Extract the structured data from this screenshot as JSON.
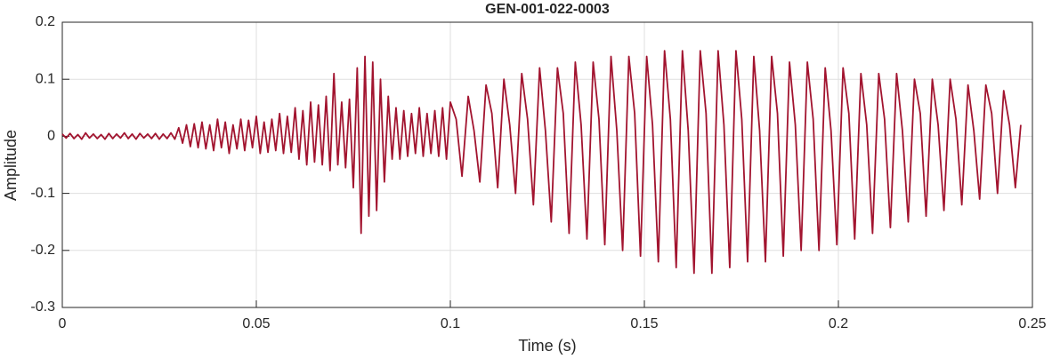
{
  "chart_data": {
    "type": "line",
    "title": "GEN-001-022-0003",
    "xlabel": "Time (s)",
    "ylabel": "Amplitude",
    "xlim": [
      0,
      0.25
    ],
    "xticks": [
      0,
      0.05,
      0.1,
      0.15,
      0.2,
      0.25
    ],
    "ylim": [
      -0.3,
      0.2
    ],
    "yticks": [
      -0.3,
      -0.2,
      -0.1,
      0,
      0.1,
      0.2
    ],
    "grid": true,
    "series": [
      {
        "color": "#a2142f",
        "x": [
          0,
          0.001,
          0.002,
          0.003,
          0.004,
          0.005,
          0.006,
          0.007,
          0.008,
          0.009,
          0.01,
          0.011,
          0.012,
          0.013,
          0.014,
          0.015,
          0.016,
          0.017,
          0.018,
          0.019,
          0.02,
          0.021,
          0.022,
          0.023,
          0.024,
          0.025,
          0.026,
          0.027,
          0.028,
          0.029,
          0.03,
          0.031,
          0.032,
          0.033,
          0.034,
          0.035,
          0.036,
          0.037,
          0.038,
          0.039,
          0.04,
          0.041,
          0.042,
          0.043,
          0.044,
          0.045,
          0.046,
          0.047,
          0.048,
          0.049,
          0.05,
          0.051,
          0.052,
          0.053,
          0.054,
          0.055,
          0.056,
          0.057,
          0.058,
          0.059,
          0.06,
          0.061,
          0.062,
          0.063,
          0.064,
          0.065,
          0.066,
          0.067,
          0.068,
          0.069,
          0.07,
          0.071,
          0.072,
          0.073,
          0.074,
          0.075,
          0.076,
          0.077,
          0.078,
          0.079,
          0.08,
          0.081,
          0.082,
          0.083,
          0.084,
          0.085,
          0.086,
          0.087,
          0.088,
          0.089,
          0.09,
          0.091,
          0.092,
          0.093,
          0.094,
          0.095,
          0.096,
          0.097,
          0.098,
          0.099,
          0.1,
          0.1015,
          0.103,
          0.1046,
          0.1061,
          0.1076,
          0.1092,
          0.1107,
          0.1122,
          0.1138,
          0.1153,
          0.1168,
          0.1184,
          0.1199,
          0.1214,
          0.123,
          0.1245,
          0.126,
          0.1276,
          0.1291,
          0.1306,
          0.1322,
          0.1337,
          0.1352,
          0.1368,
          0.1383,
          0.1398,
          0.1414,
          0.1429,
          0.1444,
          0.146,
          0.1475,
          0.149,
          0.1506,
          0.1521,
          0.1536,
          0.1552,
          0.1567,
          0.1582,
          0.1598,
          0.1613,
          0.1628,
          0.1644,
          0.1659,
          0.1674,
          0.169,
          0.1705,
          0.172,
          0.1736,
          0.1751,
          0.1766,
          0.1782,
          0.1797,
          0.1812,
          0.1828,
          0.1843,
          0.1858,
          0.1874,
          0.1889,
          0.1904,
          0.192,
          0.1935,
          0.195,
          0.1966,
          0.1981,
          0.1996,
          0.2012,
          0.2027,
          0.2042,
          0.2058,
          0.2073,
          0.2088,
          0.2104,
          0.2119,
          0.2134,
          0.215,
          0.2165,
          0.218,
          0.2196,
          0.2211,
          0.2226,
          0.2242,
          0.2257,
          0.2272,
          0.2288,
          0.2303,
          0.2318,
          0.2334,
          0.2349,
          0.2364,
          0.238,
          0.2395,
          0.241,
          0.2426,
          0.2441,
          0.2456,
          0.247
        ],
        "values": [
          0.004,
          -0.003,
          0.005,
          -0.004,
          0.003,
          -0.005,
          0.006,
          -0.003,
          0.004,
          -0.004,
          0.003,
          -0.005,
          0.005,
          -0.004,
          0.004,
          -0.003,
          0.006,
          -0.004,
          0.004,
          -0.005,
          0.005,
          -0.003,
          0.004,
          -0.004,
          0.005,
          -0.005,
          0.004,
          -0.004,
          0.006,
          -0.005,
          0.015,
          -0.012,
          0.02,
          -0.018,
          0.022,
          -0.02,
          0.025,
          -0.022,
          0.02,
          -0.025,
          0.03,
          -0.02,
          0.025,
          -0.03,
          0.02,
          -0.022,
          0.03,
          -0.025,
          0.028,
          -0.02,
          0.035,
          -0.03,
          0.025,
          -0.028,
          0.03,
          -0.025,
          0.04,
          -0.03,
          0.035,
          -0.028,
          0.05,
          -0.04,
          0.045,
          -0.05,
          0.06,
          -0.045,
          0.055,
          -0.05,
          0.07,
          -0.06,
          0.11,
          -0.05,
          0.06,
          -0.055,
          0.065,
          -0.09,
          0.12,
          -0.17,
          0.14,
          -0.14,
          0.13,
          -0.13,
          0.1,
          -0.08,
          0.07,
          -0.04,
          0.05,
          -0.04,
          0.045,
          -0.035,
          0.04,
          -0.03,
          0.05,
          -0.035,
          0.04,
          -0.03,
          0.045,
          -0.035,
          0.05,
          -0.04,
          0.06,
          0.03,
          -0.07,
          0.07,
          0.01,
          -0.08,
          0.09,
          0.04,
          -0.09,
          0.1,
          0.02,
          -0.1,
          0.11,
          0.03,
          -0.12,
          0.12,
          0.01,
          -0.15,
          0.12,
          0.04,
          -0.17,
          0.13,
          0.02,
          -0.18,
          0.13,
          0.03,
          -0.19,
          0.14,
          0.01,
          -0.2,
          0.14,
          0.04,
          -0.21,
          0.14,
          0.02,
          -0.22,
          0.15,
          0.03,
          -0.23,
          0.15,
          0.01,
          -0.24,
          0.15,
          0.04,
          -0.24,
          0.15,
          0.02,
          -0.23,
          0.15,
          0.03,
          -0.22,
          0.14,
          0.01,
          -0.22,
          0.14,
          0.04,
          -0.21,
          0.13,
          0.02,
          -0.2,
          0.13,
          0.03,
          -0.2,
          0.12,
          0.01,
          -0.19,
          0.12,
          0.04,
          -0.18,
          0.11,
          0.02,
          -0.17,
          0.11,
          0.03,
          -0.16,
          0.11,
          0.01,
          -0.15,
          0.1,
          0.04,
          -0.14,
          0.1,
          0.02,
          -0.13,
          0.1,
          0.03,
          -0.12,
          0.09,
          0.01,
          -0.11,
          0.09,
          0.04,
          -0.1,
          0.08,
          0.02,
          -0.09,
          0.02
        ]
      }
    ]
  }
}
